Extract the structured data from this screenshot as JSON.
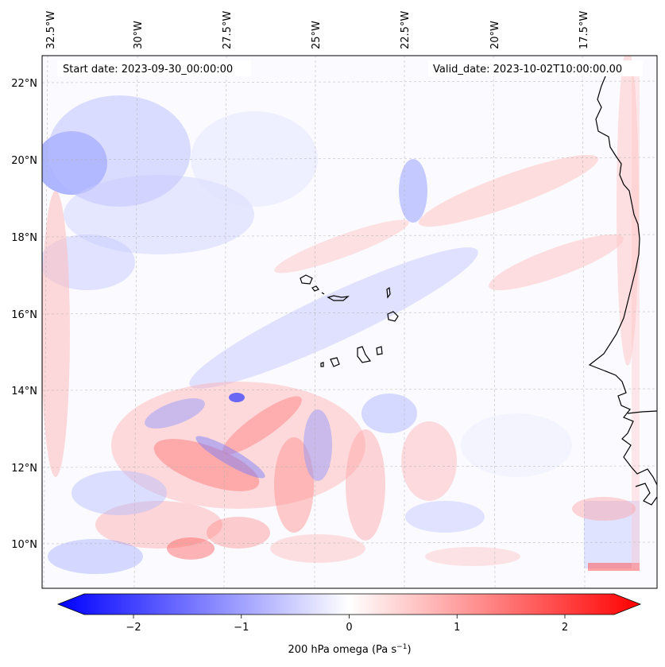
{
  "map": {
    "start_date_text": "Start date: 2023-09-30_00:00:00",
    "valid_date_text": "Valid_date: 2023-10-02T10:00:00.00",
    "lon_labels": [
      "32.5°W",
      "30°W",
      "27.5°W",
      "25°W",
      "22.5°W",
      "20°W",
      "17.5°W"
    ],
    "lat_labels": [
      "22°N",
      "20°N",
      "18°N",
      "16°N",
      "14°N",
      "12°N",
      "10°N"
    ],
    "colormap": "bwr",
    "colors": {
      "negative": "#0000ff",
      "neutral": "#ffffff",
      "positive": "#ff0000",
      "coastline": "#000000",
      "gridline": "#b0b0b0"
    }
  },
  "colorbar": {
    "ticks": [
      "−2",
      "−1",
      "0",
      "1",
      "2"
    ],
    "tick_values": [
      -2,
      -1,
      0,
      1,
      2
    ],
    "range": [
      -2.7,
      2.7
    ],
    "label_main": "200 hPa omega (Pa s",
    "label_sup": "−1",
    "label_close": ")"
  }
}
